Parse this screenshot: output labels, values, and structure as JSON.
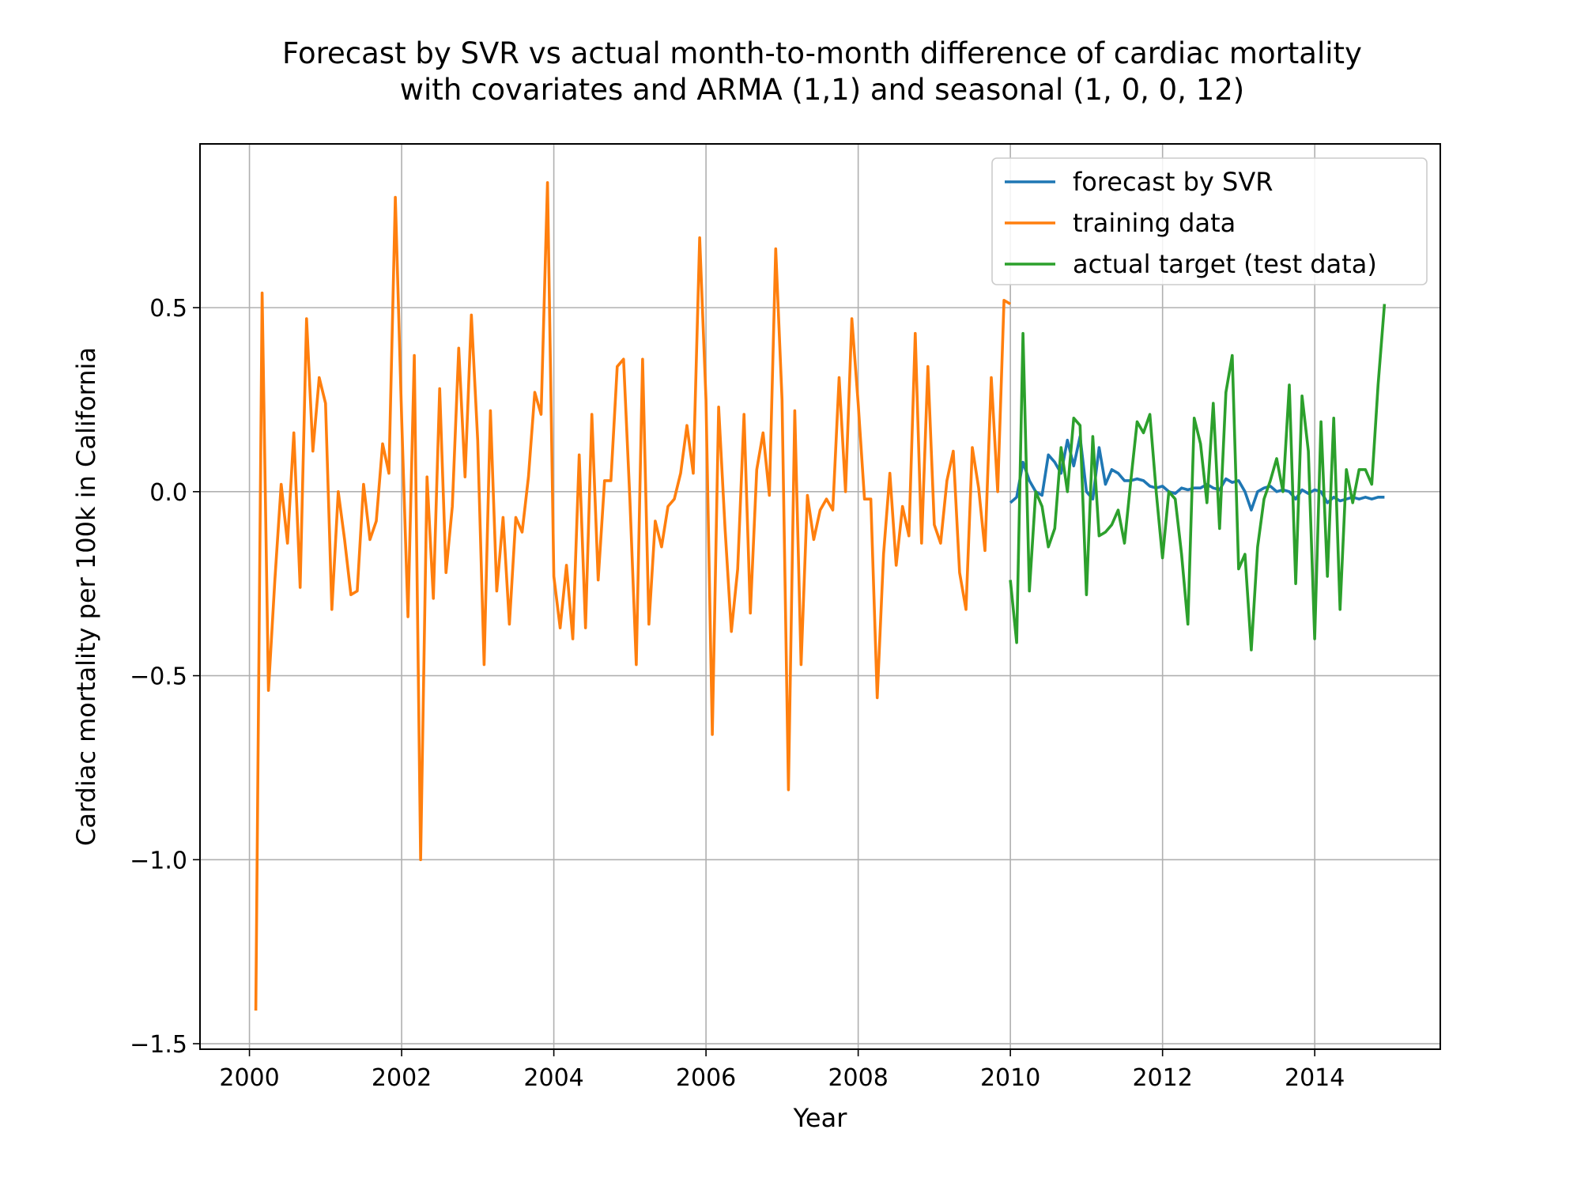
{
  "chart_data": {
    "type": "line",
    "title": [
      "Forecast by SVR vs actual month-to-month difference of cardiac mortality",
      "with covariates and ARMA (1,1) and seasonal (1, 0, 0, 12)"
    ],
    "xlabel": "Year",
    "ylabel": "Cardiac mortality per 100k in California",
    "xlim": [
      1999.35,
      2015.65
    ],
    "ylim": [
      -1.515,
      0.945
    ],
    "xticks": [
      2000,
      2002,
      2004,
      2006,
      2008,
      2010,
      2012,
      2014
    ],
    "yticks": [
      0.5,
      0.0,
      -0.5,
      -1.0,
      -1.5
    ],
    "ytick_labels": [
      "0.5",
      "0.0",
      "−0.5",
      "−1.0",
      "−1.5"
    ],
    "grid": true,
    "legend_position": "upper right",
    "series": [
      {
        "name": "forecast by SVR",
        "color": "#1f77b4",
        "x_start": 2000.0,
        "x_step": 0.08333,
        "values": [
          -0.03,
          -0.015,
          0.08,
          0.03,
          0.0,
          -0.01,
          0.1,
          0.08,
          0.05,
          0.14,
          0.07,
          0.15,
          0.0,
          -0.02,
          0.12,
          0.02,
          0.06,
          0.05,
          0.03,
          0.03,
          0.035,
          0.03,
          0.015,
          0.01,
          0.015,
          0.0,
          -0.005,
          0.01,
          0.005,
          0.01,
          0.01,
          0.02,
          0.01,
          0.005,
          0.035,
          0.025,
          0.03,
          0.0,
          -0.05,
          0.0,
          0.01,
          0.015,
          0.0,
          0.005,
          0.0,
          -0.02,
          0.005,
          -0.005,
          0.005,
          0.0,
          -0.03,
          -0.015,
          -0.025,
          -0.02,
          -0.015,
          -0.02,
          -0.015,
          -0.02,
          -0.015,
          -0.015
        ],
        "x_offset_index": 120
      },
      {
        "name": "training data",
        "color": "#ff7f0e",
        "x_start": 2000.0,
        "x_step": 0.08333,
        "values": [
          -1.41,
          0.54,
          -0.54,
          -0.24,
          0.02,
          -0.14,
          0.16,
          -0.26,
          0.47,
          0.11,
          0.31,
          0.24,
          -0.32,
          0.0,
          -0.13,
          -0.28,
          -0.27,
          0.02,
          -0.13,
          -0.08,
          0.13,
          0.05,
          0.8,
          0.2,
          -0.34,
          0.37,
          -1.0,
          0.04,
          -0.29,
          0.28,
          -0.22,
          -0.04,
          0.39,
          0.04,
          0.48,
          0.14,
          -0.47,
          0.22,
          -0.27,
          -0.07,
          -0.36,
          -0.07,
          -0.11,
          0.04,
          0.27,
          0.21,
          0.84,
          -0.23,
          -0.37,
          -0.2,
          -0.4,
          0.1,
          -0.37,
          0.21,
          -0.24,
          0.03,
          0.03,
          0.34,
          0.36,
          -0.02,
          -0.47,
          0.36,
          -0.36,
          -0.08,
          -0.15,
          -0.04,
          -0.02,
          0.05,
          0.18,
          0.05,
          0.69,
          0.25,
          -0.66,
          0.23,
          -0.1,
          -0.38,
          -0.21,
          0.21,
          -0.33,
          0.06,
          0.16,
          -0.01,
          0.66,
          0.25,
          -0.81,
          0.22,
          -0.47,
          -0.01,
          -0.13,
          -0.05,
          -0.02,
          -0.05,
          0.31,
          0.0,
          0.47,
          0.24,
          -0.02,
          -0.02,
          -0.56,
          -0.17,
          0.05,
          -0.2,
          -0.04,
          -0.12,
          0.43,
          -0.14,
          0.34,
          -0.09,
          -0.14,
          0.03,
          0.11,
          -0.22,
          -0.32,
          0.12,
          0.01,
          -0.16,
          0.31,
          0.0,
          0.52,
          0.51
        ],
        "x_offset_index": 1
      },
      {
        "name": "actual target (test data)",
        "color": "#2ca02c",
        "x_start": 2000.0,
        "x_step": 0.08333,
        "values": [
          -0.24,
          -0.41,
          0.43,
          -0.27,
          0.0,
          -0.04,
          -0.15,
          -0.1,
          0.12,
          0.0,
          0.2,
          0.18,
          -0.28,
          0.15,
          -0.12,
          -0.11,
          -0.09,
          -0.05,
          -0.14,
          0.03,
          0.19,
          0.16,
          0.21,
          0.0,
          -0.18,
          0.0,
          -0.02,
          -0.17,
          -0.36,
          0.2,
          0.13,
          -0.03,
          0.24,
          -0.1,
          0.27,
          0.37,
          -0.21,
          -0.17,
          -0.43,
          -0.15,
          -0.02,
          0.03,
          0.09,
          0.0,
          0.29,
          -0.25,
          0.26,
          0.11,
          -0.4,
          0.19,
          -0.23,
          0.2,
          -0.32,
          0.06,
          -0.03,
          0.06,
          0.06,
          0.02,
          0.29,
          0.51
        ],
        "x_offset_index": 120
      }
    ]
  }
}
